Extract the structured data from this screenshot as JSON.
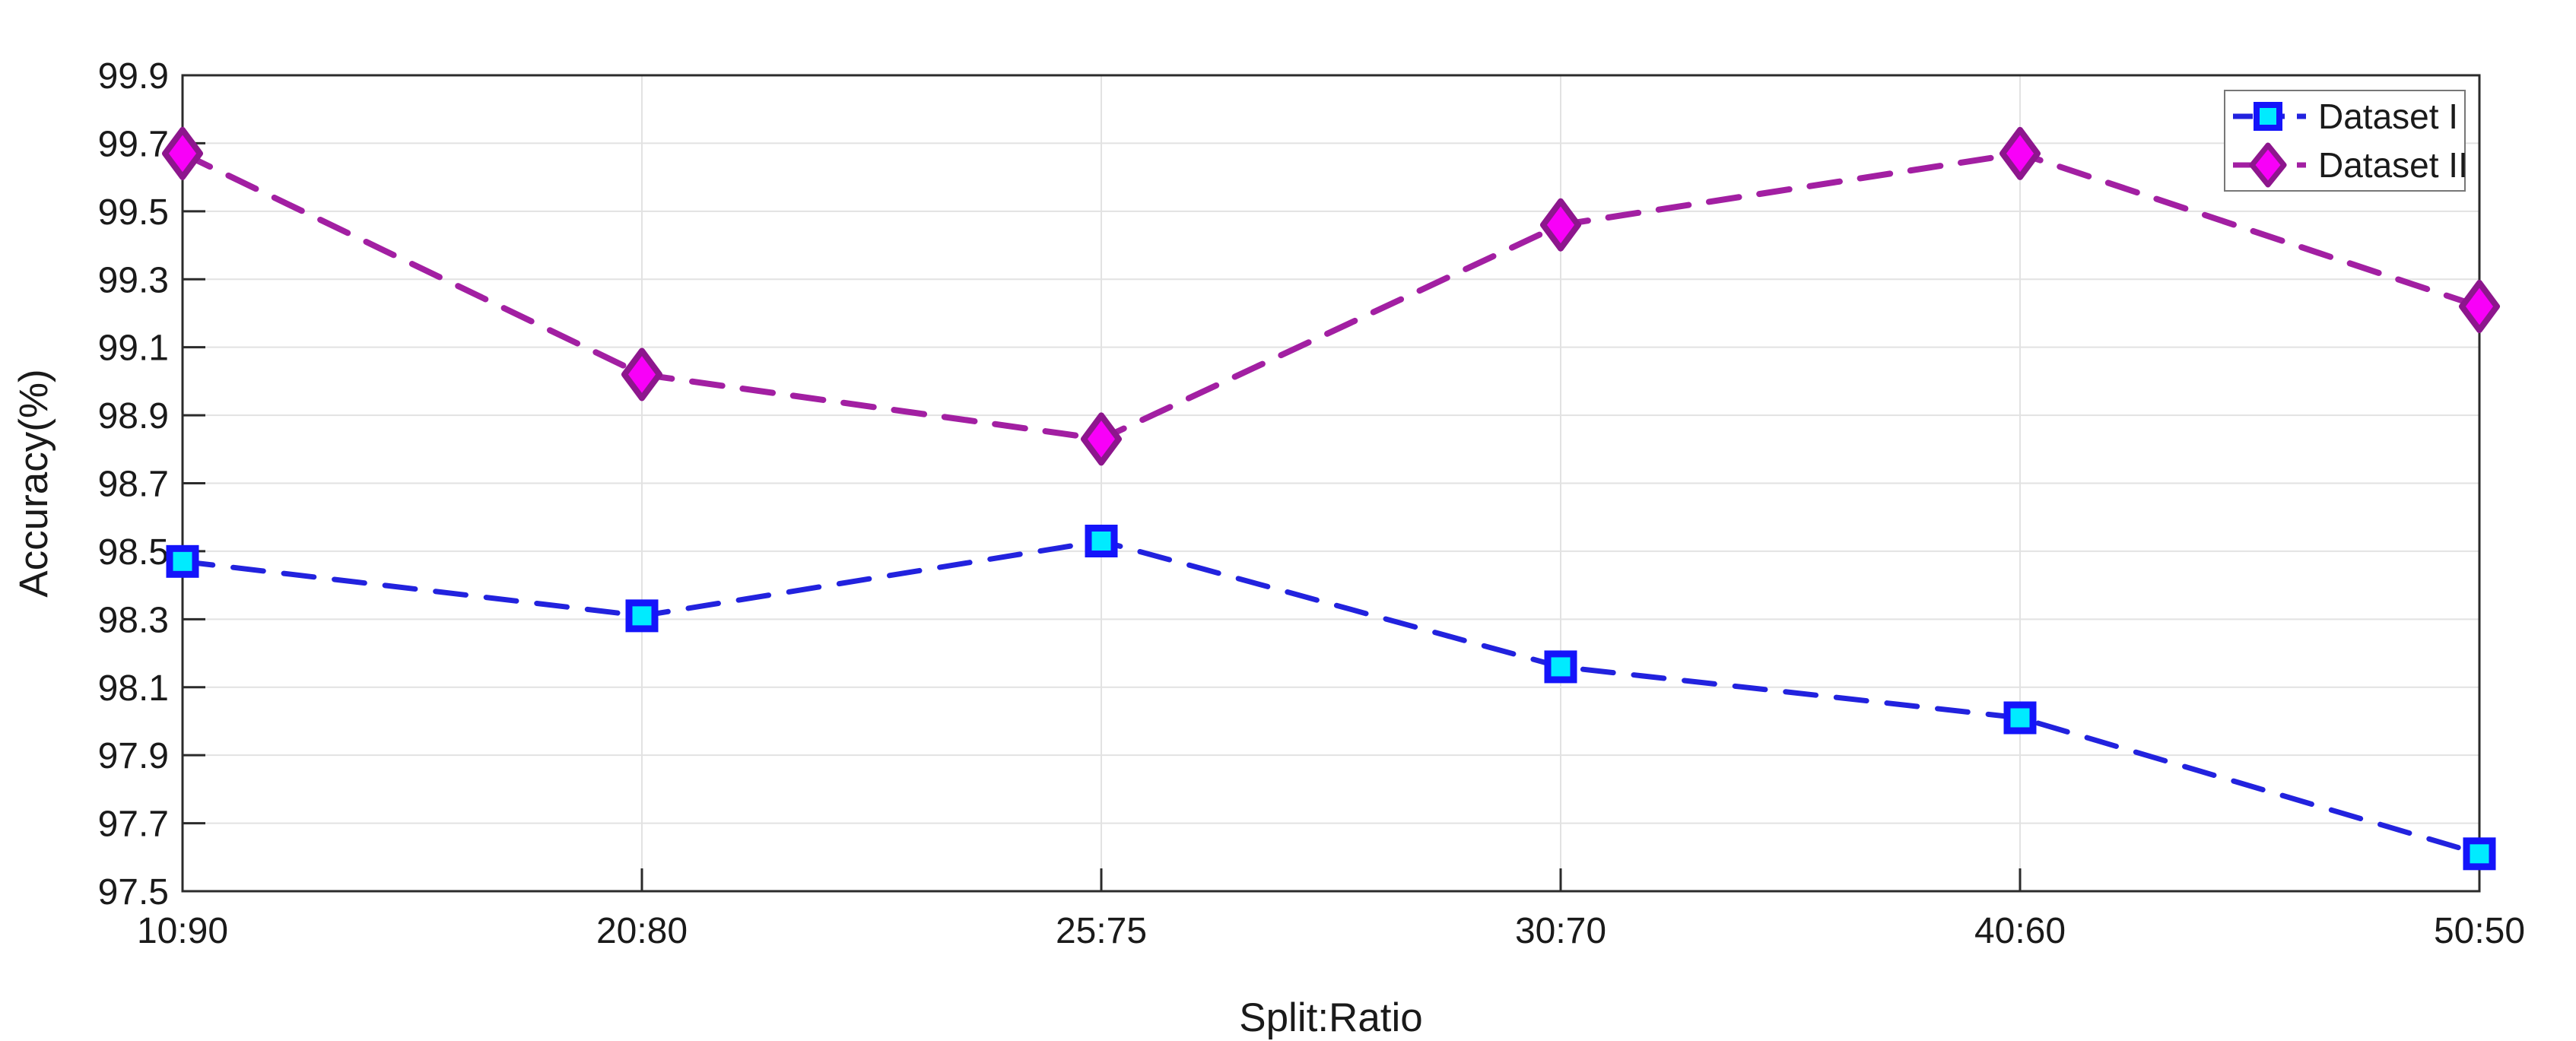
{
  "figure": {
    "background": "#ffffff"
  },
  "chart_data": {
    "type": "line",
    "title": "",
    "xlabel": "Split:Ratio",
    "ylabel": "Accuracy(%)",
    "categories": [
      "10:90",
      "20:80",
      "25:75",
      "30:70",
      "40:60",
      "50:50"
    ],
    "series": [
      {
        "name": "Dataset I",
        "values": [
          98.47,
          98.31,
          98.53,
          98.16,
          98.01,
          97.61
        ],
        "line_color": "#2222DE",
        "line_style": "dashed",
        "marker": "square",
        "marker_fill": "#00EBFF",
        "marker_edge": "#1414FA"
      },
      {
        "name": "Dataset II",
        "values": [
          99.67,
          99.02,
          98.83,
          99.46,
          99.67,
          99.22
        ],
        "line_color": "#A21FA2",
        "line_style": "dashed",
        "marker": "diamond",
        "marker_fill": "#F800F8",
        "marker_edge": "#8D168D"
      }
    ],
    "ylim": [
      97.5,
      99.9
    ],
    "ytick_step": 0.2,
    "ytick_labels": [
      "99.9",
      "99.7",
      "99.5",
      "99.3",
      "99.1",
      "98.9",
      "98.7",
      "98.5",
      "98.3",
      "98.1",
      "97.9",
      "97.7",
      "97.5"
    ],
    "grid": "both",
    "grid_color": "#E2E2E2",
    "axis_color": "#2B2B2B",
    "tick_label_color": "#1A1A1A",
    "legend_position": "top-right",
    "legend_border_color": "#777777"
  }
}
